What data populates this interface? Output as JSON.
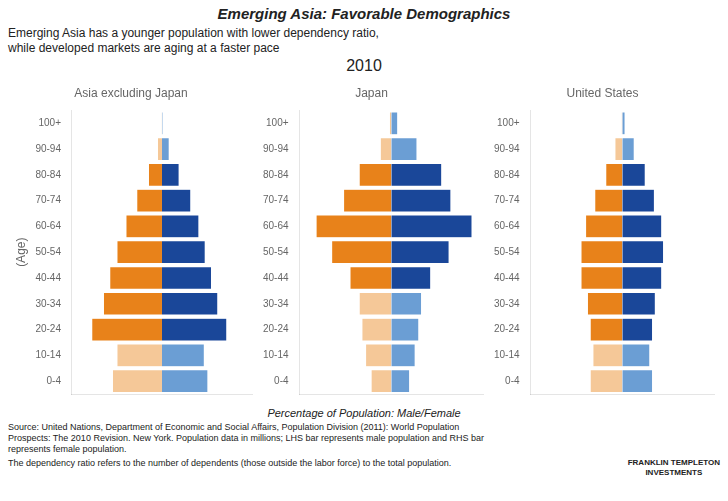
{
  "title": "Emerging Asia: Favorable Demographics",
  "subtitle": "Emerging Asia has a younger population with lower dependency ratio,\nwhile developed markets are aging at a faster pace",
  "xlabel": "Percentage of Population: Male/Female",
  "annotations": [
    "2010",
    "Source: United Nations, Department of Economic and Social Affairs, Population Division (2011): World Population\nProspects: The 2010 Revision. New York. Population data in millions; LHS bar represents male population and RHS bar\nrepresents female population.",
    "The dependency ratio refers to the number of dependents (those outside the labor force) to the total population.",
    "FRANKLIN TEMPLETON\nINVESTMENTS"
  ],
  "chart_data": [
    {
      "type": "bar",
      "orientation": "horizontal",
      "stacked": true,
      "grid": false,
      "tick_labels": "y",
      "title": "Asia excluding Japan",
      "ylabel": "(Age)",
      "categories": [
        "0-4",
        "10-14",
        "20-24",
        "30-34",
        "40-44",
        "50-54",
        "60-64",
        "70-74",
        "80-84",
        "90-94",
        "100+"
      ],
      "xlim": [
        -10,
        10
      ],
      "series": [
        {
          "values": [
            -5.5,
            -5.0,
            -7.8,
            -6.5,
            -5.8,
            -5.0,
            -4.0,
            -2.8,
            -1.5,
            -0.5,
            -0.05
          ],
          "colors": [
            "#F5C898",
            "#F5C898",
            "#E8821A",
            "#E8821A",
            "#E8821A",
            "#E8821A",
            "#E8821A",
            "#E8821A",
            "#E8821A",
            "#F5C898",
            "#F5C898"
          ]
        },
        {
          "values": [
            5.1,
            4.7,
            7.2,
            6.2,
            5.5,
            4.8,
            4.1,
            3.2,
            1.9,
            0.8,
            0.1
          ],
          "colors": [
            "#6B9ED4",
            "#6B9ED4",
            "#1A4799",
            "#1A4799",
            "#1A4799",
            "#1A4799",
            "#1A4799",
            "#1A4799",
            "#1A4799",
            "#6B9ED4",
            "#6B9ED4"
          ]
        }
      ]
    },
    {
      "type": "bar",
      "orientation": "horizontal",
      "stacked": true,
      "grid": false,
      "tick_labels": "y",
      "title": "Japan",
      "categories": [
        "0-4",
        "10-14",
        "20-24",
        "30-34",
        "40-44",
        "50-54",
        "60-64",
        "70-74",
        "80-84",
        "90-94",
        "100+"
      ],
      "xlim": [
        -10,
        10
      ],
      "series": [
        {
          "values": [
            -2.2,
            -2.8,
            -3.2,
            -3.5,
            -4.5,
            -6.5,
            -8.2,
            -5.2,
            -3.5,
            -1.2,
            -0.2
          ],
          "colors": [
            "#F5C898",
            "#F5C898",
            "#F5C898",
            "#F5C898",
            "#E8821A",
            "#E8821A",
            "#E8821A",
            "#E8821A",
            "#E8821A",
            "#F5C898",
            "#F5C898"
          ]
        },
        {
          "values": [
            2.0,
            2.6,
            3.0,
            3.3,
            4.3,
            6.3,
            8.8,
            6.5,
            5.5,
            2.8,
            0.7
          ],
          "colors": [
            "#6B9ED4",
            "#6B9ED4",
            "#6B9ED4",
            "#6B9ED4",
            "#1A4799",
            "#1A4799",
            "#1A4799",
            "#1A4799",
            "#1A4799",
            "#6B9ED4",
            "#6B9ED4"
          ]
        }
      ]
    },
    {
      "type": "bar",
      "orientation": "horizontal",
      "stacked": true,
      "grid": false,
      "tick_labels": "y",
      "title": "United States",
      "categories": [
        "0-4",
        "10-14",
        "20-24",
        "30-34",
        "40-44",
        "50-54",
        "60-64",
        "70-74",
        "80-84",
        "90-94",
        "100+"
      ],
      "xlim": [
        -10,
        10
      ],
      "series": [
        {
          "values": [
            -3.5,
            -3.2,
            -3.5,
            -3.8,
            -4.5,
            -4.5,
            -4.0,
            -3.0,
            -1.8,
            -0.8,
            -0.1
          ],
          "colors": [
            "#F5C898",
            "#F5C898",
            "#E8821A",
            "#E8821A",
            "#E8821A",
            "#E8821A",
            "#E8821A",
            "#E8821A",
            "#E8821A",
            "#F5C898",
            "#F5C898"
          ]
        },
        {
          "values": [
            3.3,
            3.0,
            3.3,
            3.6,
            4.3,
            4.5,
            4.3,
            3.5,
            2.5,
            1.3,
            0.3
          ],
          "colors": [
            "#6B9ED4",
            "#6B9ED4",
            "#1A4799",
            "#1A4799",
            "#1A4799",
            "#1A4799",
            "#1A4799",
            "#1A4799",
            "#1A4799",
            "#6B9ED4",
            "#6B9ED4"
          ]
        }
      ]
    }
  ]
}
